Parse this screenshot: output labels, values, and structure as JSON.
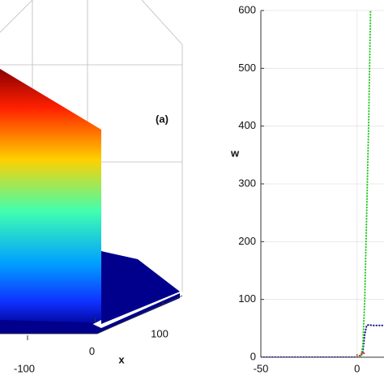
{
  "chart_data": [
    {
      "type": "surface3d",
      "annotation": "(a)",
      "xlabel": "x",
      "xticks": [
        -100,
        0,
        100
      ]
    },
    {
      "type": "line",
      "ylabel": "w",
      "xlim": [
        -50,
        14
      ],
      "xticks": [
        -50,
        0
      ],
      "ylim": [
        0,
        600
      ],
      "yticks": [
        0,
        100,
        200,
        300,
        400,
        500,
        600
      ],
      "grid": true,
      "series": [
        {
          "color": "#10108c",
          "x": [
            -50,
            -45,
            -40,
            -35,
            -30,
            -25,
            -20,
            -15,
            -10,
            -5,
            0,
            1,
            2,
            3,
            4,
            5,
            6,
            8,
            10,
            12,
            14
          ],
          "values": [
            0,
            0,
            0,
            0,
            0,
            0,
            0,
            0,
            0,
            0,
            0,
            0,
            1,
            10,
            40,
            55,
            56,
            55,
            55,
            55,
            55
          ]
        },
        {
          "color": "#22c822",
          "x": [
            0,
            1,
            2,
            3,
            4,
            5,
            6,
            7
          ],
          "values": [
            0,
            0,
            1,
            20,
            100,
            250,
            400,
            600
          ]
        },
        {
          "color": "#e03030",
          "x": [
            0,
            1,
            2,
            3,
            4
          ],
          "values": [
            0,
            2,
            5,
            8,
            6
          ]
        }
      ]
    }
  ]
}
